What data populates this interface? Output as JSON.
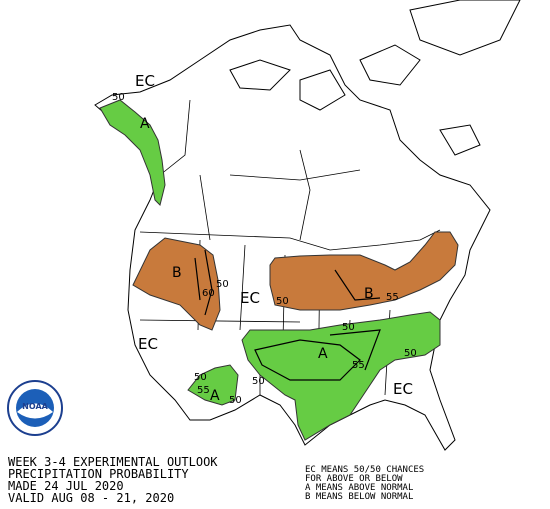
{
  "map": {
    "labels": [
      "EC",
      "50",
      "A",
      "B",
      "50",
      "60",
      "EC",
      "50",
      "B",
      "55",
      "50",
      "A",
      "55",
      "50",
      "EC",
      "50",
      "50",
      "55",
      "A",
      "50",
      "EC"
    ]
  },
  "logo": "NOAA",
  "footer": {
    "lines": [
      "WEEK 3-4 EXPERIMENTAL OUTLOOK",
      "PRECIPITATION PROBABILITY",
      "MADE  24 JUL 2020",
      "VALID  AUG 08 - 21, 2020"
    ]
  },
  "legend": {
    "lines": [
      "EC MEANS 50/50 CHANCES",
      "FOR ABOVE OR BELOW",
      "A MEANS ABOVE NORMAL",
      "B MEANS BELOW NORMAL"
    ]
  }
}
